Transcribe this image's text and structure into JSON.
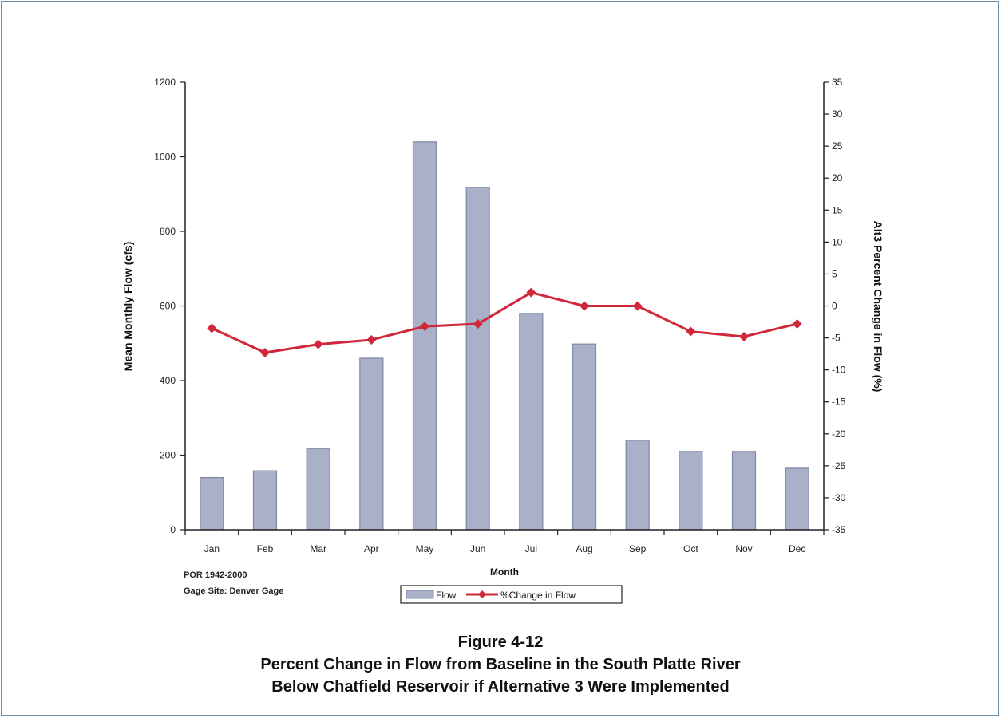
{
  "chart_data": {
    "type": "bar",
    "categories": [
      "Jan",
      "Feb",
      "Mar",
      "Apr",
      "May",
      "Jun",
      "Jul",
      "Aug",
      "Sep",
      "Oct",
      "Nov",
      "Dec"
    ],
    "series": [
      {
        "name": "Flow",
        "axis": "left",
        "type": "bar",
        "values": [
          140,
          158,
          218,
          460,
          1040,
          918,
          580,
          498,
          240,
          210,
          210,
          165
        ]
      },
      {
        "name": "%Change in Flow",
        "axis": "right",
        "type": "line",
        "values": [
          -3.5,
          -7.3,
          -6.0,
          -5.3,
          -3.2,
          -2.8,
          2.1,
          0.0,
          0.0,
          -4.0,
          -4.8,
          -2.8
        ]
      }
    ],
    "xlabel": "Month",
    "ylabel": "Mean Monthly Flow (cfs)",
    "y2label": "Alt3 Percent Change in Flow (%)",
    "ylim": [
      0,
      1200
    ],
    "y2lim": [
      -35,
      35
    ],
    "yticks": [
      0,
      200,
      400,
      600,
      800,
      1000,
      1200
    ],
    "y2ticks": [
      -35,
      -30,
      -25,
      -20,
      -15,
      -10,
      -5,
      0,
      5,
      10,
      15,
      20,
      25,
      30,
      35
    ],
    "zero_reference_line": true,
    "grid": false,
    "legend_position": "bottom-center",
    "colors": {
      "bar": "#a9b0c8",
      "bar_edge": "#7f87a3",
      "line": "#d0283a"
    }
  },
  "notes": {
    "line1": "POR 1942-2000",
    "line2": "Gage Site: Denver Gage"
  },
  "caption": {
    "figure": "Figure 4-12",
    "line1": "Percent Change in Flow from Baseline in the South Platte River",
    "line2": "Below Chatfield Reservoir if Alternative 3 Were Implemented"
  }
}
